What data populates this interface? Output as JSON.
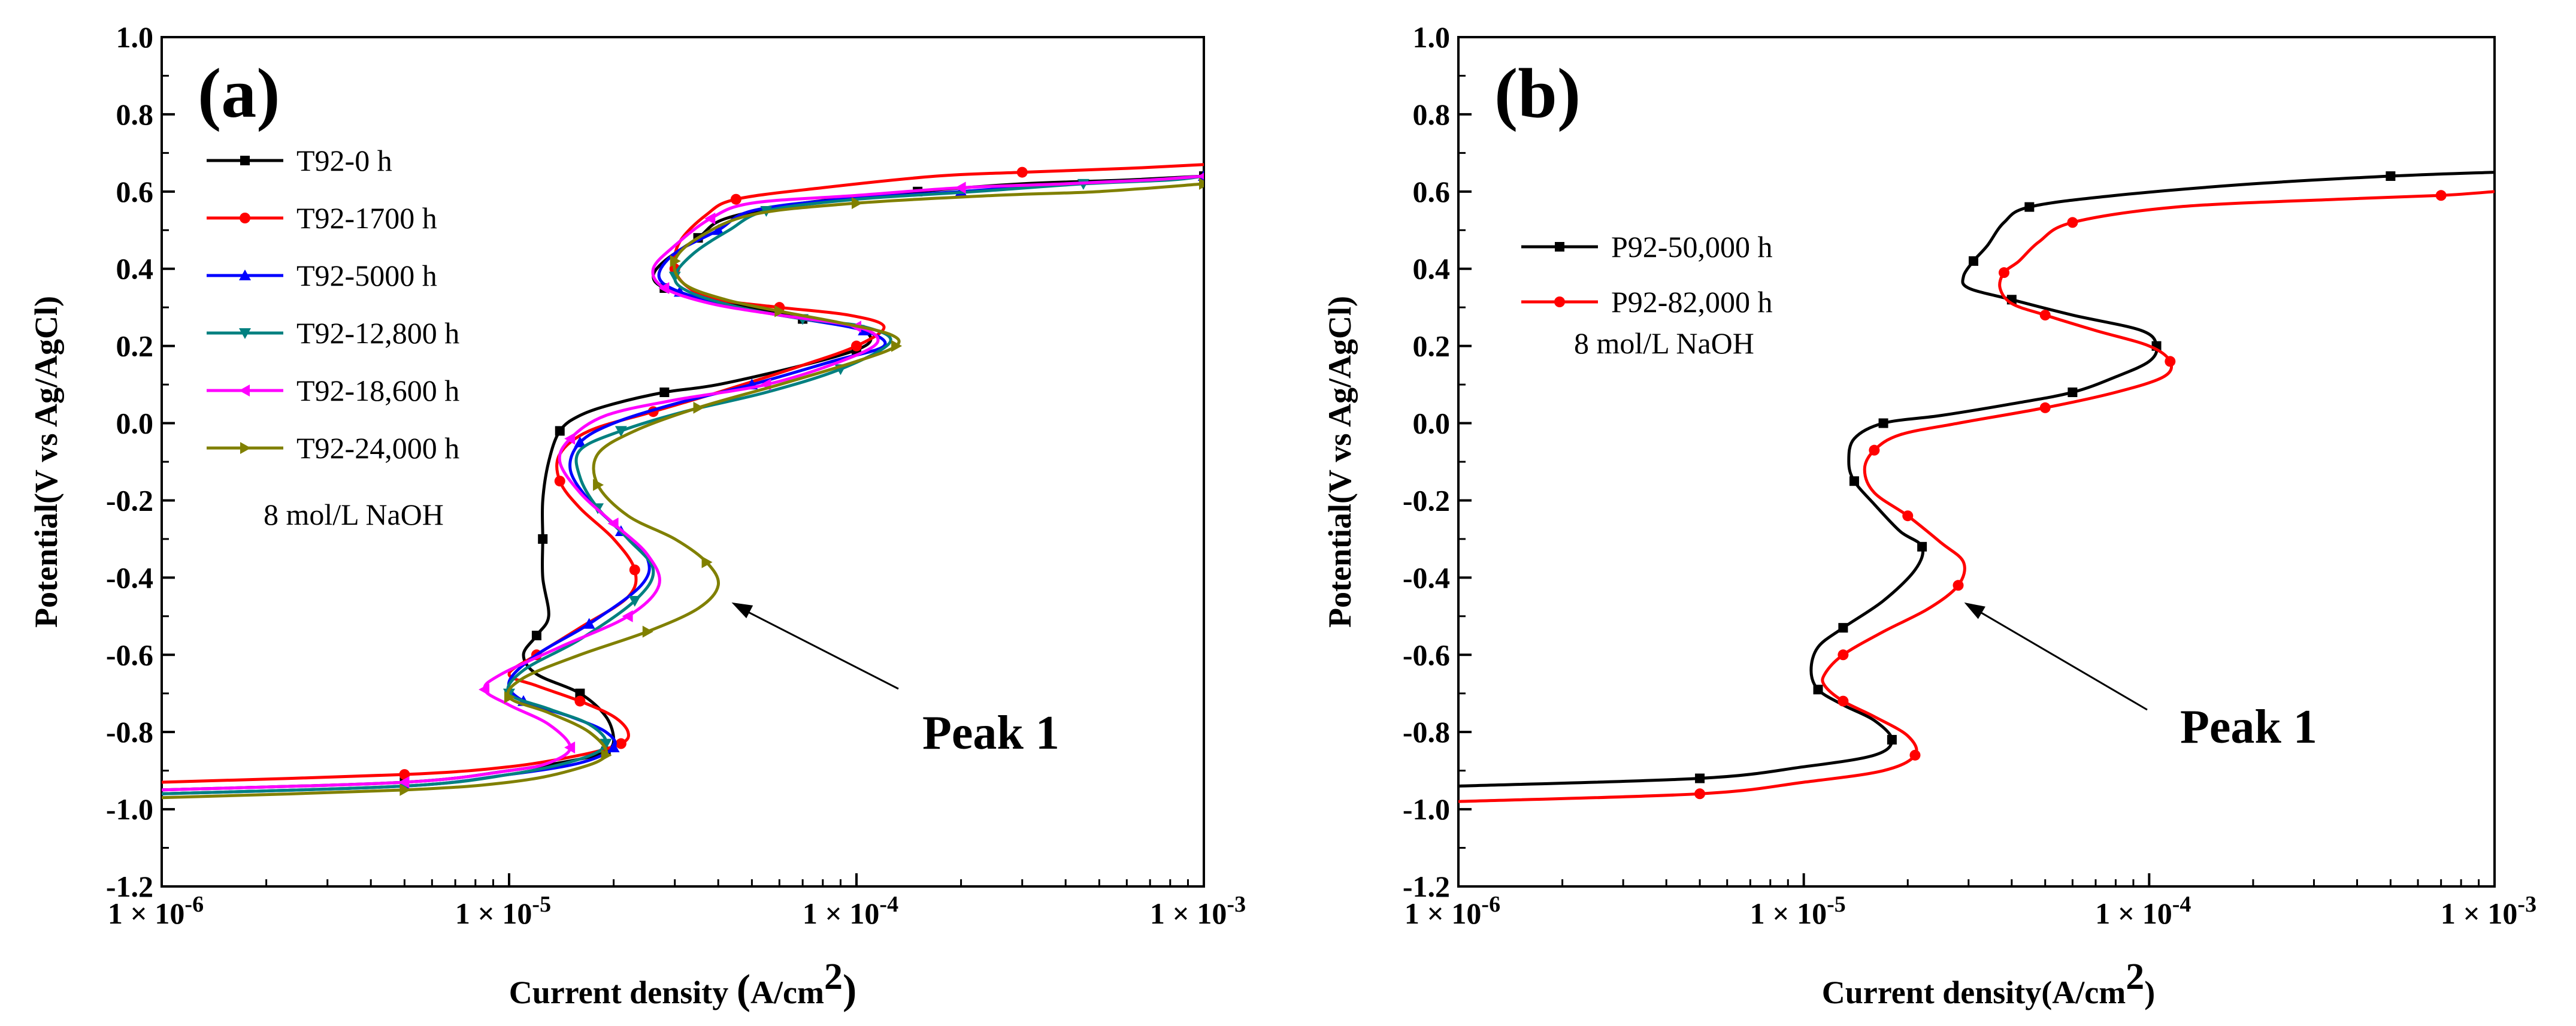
{
  "chart_data": [
    {
      "type": "line",
      "panel_label": "(a)",
      "xlabel": "Current density",
      "xlabel_unit": "A/cm",
      "xlabel_unit_exp": "2",
      "ylabel": "Potential(V vs Ag/AgCl)",
      "x_scale": "log",
      "xlim": [
        1e-06,
        0.001
      ],
      "ylim": [
        -1.2,
        1.0
      ],
      "x_ticks": [
        {
          "value": 1e-06,
          "label": "1 × 10",
          "exp": "-6"
        },
        {
          "value": 1e-05,
          "label": "1 × 10",
          "exp": "-5"
        },
        {
          "value": 0.0001,
          "label": "1 × 10",
          "exp": "-4"
        },
        {
          "value": 0.001,
          "label": "1 × 10",
          "exp": "-3"
        }
      ],
      "y_ticks": [
        -1.2,
        -1.0,
        -0.8,
        -0.6,
        -0.4,
        -0.2,
        0.0,
        0.2,
        0.4,
        0.6,
        0.8,
        1.0
      ],
      "y_tick_labels": [
        "-1.2",
        "-1.0",
        "-0.8",
        "-0.6",
        "-0.4",
        "-0.2",
        "0.0",
        "0.2",
        "0.4",
        "0.6",
        "0.8",
        "1.0"
      ],
      "legend_position": "top-left",
      "annotation_note": "8 mol/L NaOH",
      "peak_label": "Peak 1",
      "peak_target": {
        "x": 4.2e-05,
        "y": -0.48
      },
      "series": [
        {
          "name": "T92-0 h",
          "color": "#000000",
          "marker": "square",
          "x": [
            1e-06,
            5e-06,
            1e-05,
            1.6e-05,
            1.9e-05,
            2e-05,
            1.9e-05,
            1.6e-05,
            1.2e-05,
            1.1e-05,
            1.2e-05,
            1.3e-05,
            1.25e-05,
            1.25e-05,
            1.25e-05,
            1.3e-05,
            1.4e-05,
            1.6e-05,
            2e-05,
            2.8e-05,
            4e-05,
            7e-05,
            0.0001,
            0.00011,
            9.8e-05,
            7e-05,
            5e-05,
            3.6e-05,
            2.8e-05,
            2.6e-05,
            2.8e-05,
            3.5e-05,
            4.2e-05,
            7e-05,
            0.00015,
            0.0003,
            0.0006,
            0.001
          ],
          "y": [
            -0.95,
            -0.93,
            -0.9,
            -0.87,
            -0.85,
            -0.82,
            -0.76,
            -0.7,
            -0.65,
            -0.6,
            -0.55,
            -0.5,
            -0.4,
            -0.3,
            -0.2,
            -0.1,
            -0.02,
            0.02,
            0.05,
            0.08,
            0.1,
            0.15,
            0.19,
            0.22,
            0.25,
            0.27,
            0.3,
            0.32,
            0.35,
            0.38,
            0.42,
            0.48,
            0.53,
            0.57,
            0.6,
            0.62,
            0.63,
            0.64
          ]
        },
        {
          "name": "T92-1700 h",
          "color": "#ff0000",
          "marker": "circle",
          "x": [
            1e-06,
            5e-06,
            1e-05,
            1.6e-05,
            2.1e-05,
            2.2e-05,
            2e-05,
            1.6e-05,
            1.2e-05,
            1e-05,
            1.2e-05,
            1.6e-05,
            2.2e-05,
            2.3e-05,
            2e-05,
            1.6e-05,
            1.4e-05,
            1.4e-05,
            1.7e-05,
            2.6e-05,
            4e-05,
            7e-05,
            0.0001,
            0.00012,
            9.5e-05,
            6e-05,
            4e-05,
            3.3e-05,
            3e-05,
            3.1e-05,
            3.7e-05,
            4.5e-05,
            8e-05,
            0.00017,
            0.0003,
            0.0006,
            0.001
          ],
          "y": [
            -0.93,
            -0.91,
            -0.89,
            -0.86,
            -0.83,
            -0.8,
            -0.76,
            -0.72,
            -0.68,
            -0.65,
            -0.6,
            -0.53,
            -0.45,
            -0.38,
            -0.3,
            -0.22,
            -0.15,
            -0.08,
            -0.02,
            0.03,
            0.08,
            0.15,
            0.2,
            0.25,
            0.28,
            0.3,
            0.32,
            0.35,
            0.4,
            0.47,
            0.54,
            0.58,
            0.61,
            0.64,
            0.65,
            0.66,
            0.67
          ]
        },
        {
          "name": "T92-5000 h",
          "color": "#0000ff",
          "marker": "triangle-up",
          "x": [
            1e-06,
            5e-06,
            1e-05,
            1.6e-05,
            2e-05,
            1.9e-05,
            1.5e-05,
            1.1e-05,
            1e-05,
            1.2e-05,
            1.7e-05,
            2.4e-05,
            2.5e-05,
            2.1e-05,
            1.7e-05,
            1.5e-05,
            1.6e-05,
            2e-05,
            3e-05,
            5e-05,
            8.5e-05,
            0.00012,
            0.000105,
            7e-05,
            4.5e-05,
            3.1e-05,
            2.7e-05,
            3e-05,
            4e-05,
            5e-05,
            9e-05,
            0.0002,
            0.0004,
            0.0007,
            0.001
          ],
          "y": [
            -0.96,
            -0.94,
            -0.91,
            -0.88,
            -0.84,
            -0.8,
            -0.76,
            -0.72,
            -0.67,
            -0.6,
            -0.52,
            -0.42,
            -0.35,
            -0.28,
            -0.2,
            -0.12,
            -0.05,
            0.0,
            0.05,
            0.1,
            0.16,
            0.2,
            0.24,
            0.27,
            0.3,
            0.34,
            0.38,
            0.44,
            0.5,
            0.55,
            0.58,
            0.6,
            0.62,
            0.63,
            0.64
          ]
        },
        {
          "name": "T92-12,800 h",
          "color": "#008080",
          "marker": "triangle-down",
          "x": [
            1e-06,
            5e-06,
            1e-05,
            1.6e-05,
            1.9e-05,
            1.7e-05,
            1.3e-05,
            1e-05,
            1.1e-05,
            1.6e-05,
            2.3e-05,
            2.6e-05,
            2.2e-05,
            1.8e-05,
            1.6e-05,
            1.6e-05,
            2.1e-05,
            3.2e-05,
            5.5e-05,
            9e-05,
            0.000125,
            0.000105,
            7e-05,
            4.6e-05,
            3.3e-05,
            3e-05,
            3.4e-05,
            4.3e-05,
            5.5e-05,
            0.0001,
            0.00022,
            0.00045,
            0.0008,
            0.001
          ],
          "y": [
            -0.96,
            -0.94,
            -0.91,
            -0.87,
            -0.83,
            -0.78,
            -0.74,
            -0.7,
            -0.64,
            -0.56,
            -0.46,
            -0.38,
            -0.3,
            -0.22,
            -0.14,
            -0.07,
            -0.02,
            0.03,
            0.08,
            0.14,
            0.21,
            0.25,
            0.27,
            0.3,
            0.34,
            0.38,
            0.44,
            0.5,
            0.55,
            0.58,
            0.6,
            0.62,
            0.63,
            0.64
          ]
        },
        {
          "name": "T92-18,600 h",
          "color": "#ff00ff",
          "marker": "triangle-left",
          "x": [
            1e-06,
            5e-06,
            1e-05,
            1.3e-05,
            1.5e-05,
            1.3e-05,
            1e-05,
            8.5e-06,
            9.5e-06,
            1.4e-05,
            2.2e-05,
            2.7e-05,
            2.5e-05,
            2e-05,
            1.6e-05,
            1.4e-05,
            1.5e-05,
            1.9e-05,
            3e-05,
            5.5e-05,
            9e-05,
            0.000115,
            0.0001,
            6e-05,
            3.8e-05,
            2.8e-05,
            2.6e-05,
            3e-05,
            3.8e-05,
            5e-05,
            0.0001,
            0.0002,
            0.0004,
            0.0007,
            0.001
          ],
          "y": [
            -0.95,
            -0.93,
            -0.9,
            -0.88,
            -0.84,
            -0.78,
            -0.73,
            -0.69,
            -0.65,
            -0.58,
            -0.5,
            -0.42,
            -0.34,
            -0.26,
            -0.18,
            -0.1,
            -0.04,
            0.02,
            0.06,
            0.1,
            0.16,
            0.21,
            0.25,
            0.28,
            0.31,
            0.35,
            0.4,
            0.46,
            0.53,
            0.57,
            0.59,
            0.61,
            0.62,
            0.63,
            0.64
          ]
        },
        {
          "name": "T92-24,000 h",
          "color": "#808000",
          "marker": "triangle-right",
          "x": [
            1e-06,
            5e-06,
            1e-05,
            1.5e-05,
            1.9e-05,
            1.7e-05,
            1.3e-05,
            1e-05,
            1.1e-05,
            1.6e-05,
            2.5e-05,
            3.5e-05,
            4e-05,
            3.7e-05,
            3e-05,
            2.2e-05,
            1.8e-05,
            1.8e-05,
            2.3e-05,
            3.5e-05,
            6e-05,
            0.0001,
            0.00013,
            0.000125,
            9e-05,
            6e-05,
            4.2e-05,
            3.2e-05,
            3e-05,
            3.5e-05,
            5e-05,
            0.0001,
            0.00025,
            0.0005,
            0.001
          ],
          "y": [
            -0.97,
            -0.95,
            -0.93,
            -0.9,
            -0.86,
            -0.8,
            -0.75,
            -0.71,
            -0.66,
            -0.6,
            -0.54,
            -0.48,
            -0.42,
            -0.36,
            -0.3,
            -0.24,
            -0.16,
            -0.08,
            -0.02,
            0.04,
            0.1,
            0.16,
            0.2,
            0.23,
            0.26,
            0.29,
            0.32,
            0.36,
            0.42,
            0.48,
            0.54,
            0.57,
            0.59,
            0.6,
            0.62
          ]
        }
      ]
    },
    {
      "type": "line",
      "panel_label": "(b)",
      "xlabel": "Current density(A/cm",
      "xlabel_close": ")",
      "xlabel_unit_exp": "2",
      "ylabel": "Potential(V vs Ag/AgCl)",
      "x_scale": "log",
      "xlim": [
        1e-06,
        0.001
      ],
      "ylim": [
        -1.2,
        1.0
      ],
      "x_ticks": [
        {
          "value": 1e-06,
          "label": "1 × 10",
          "exp": "-6"
        },
        {
          "value": 1e-05,
          "label": "1 × 10",
          "exp": "-5"
        },
        {
          "value": 0.0001,
          "label": "1 × 10",
          "exp": "-4"
        },
        {
          "value": 0.001,
          "label": "1 × 10",
          "exp": "-3"
        }
      ],
      "y_ticks": [
        -1.2,
        -1.0,
        -0.8,
        -0.6,
        -0.4,
        -0.2,
        0.0,
        0.2,
        0.4,
        0.6,
        0.8,
        1.0
      ],
      "y_tick_labels": [
        "-1.2",
        "-1.0",
        "-0.8",
        "-0.6",
        "-0.4",
        "-0.2",
        "0.0",
        "0.2",
        "0.4",
        "0.6",
        "0.8",
        "1.0"
      ],
      "legend_position": "top-left",
      "annotation_note": "8 mol/L NaOH",
      "peak_label": "Peak 1",
      "peak_target": {
        "x": 2.8e-05,
        "y": -0.48
      },
      "series": [
        {
          "name": "P92-50,000 h",
          "color": "#000000",
          "marker": "square",
          "x": [
            1e-06,
            5e-06,
            1e-05,
            1.6e-05,
            1.8e-05,
            1.6e-05,
            1.3e-05,
            1.1e-05,
            1.05e-05,
            1.1e-05,
            1.3e-05,
            1.7e-05,
            2.1e-05,
            2.2e-05,
            1.9e-05,
            1.6e-05,
            1.4e-05,
            1.35e-05,
            1.4e-05,
            1.7e-05,
            2.5e-05,
            4e-05,
            6e-05,
            8e-05,
            0.0001,
            0.000105,
            9.5e-05,
            6e-05,
            4e-05,
            3e-05,
            2.9e-05,
            3.1e-05,
            3.4e-05,
            3.8e-05,
            4.5e-05,
            8e-05,
            0.0002,
            0.0005,
            0.001
          ],
          "y": [
            -0.94,
            -0.92,
            -0.89,
            -0.86,
            -0.82,
            -0.77,
            -0.73,
            -0.69,
            -0.64,
            -0.58,
            -0.53,
            -0.46,
            -0.38,
            -0.32,
            -0.28,
            -0.21,
            -0.15,
            -0.1,
            -0.04,
            0.0,
            0.02,
            0.05,
            0.08,
            0.12,
            0.16,
            0.2,
            0.24,
            0.28,
            0.32,
            0.35,
            0.38,
            0.42,
            0.46,
            0.52,
            0.56,
            0.59,
            0.62,
            0.64,
            0.65
          ]
        },
        {
          "name": "P92-82,000 h",
          "color": "#ff0000",
          "marker": "circle",
          "x": [
            1e-06,
            5e-06,
            1e-05,
            1.7e-05,
            2.1e-05,
            2e-05,
            1.6e-05,
            1.3e-05,
            1.15e-05,
            1.15e-05,
            1.3e-05,
            1.7e-05,
            2.3e-05,
            2.8e-05,
            2.9e-05,
            2.5e-05,
            2e-05,
            1.6e-05,
            1.5e-05,
            1.6e-05,
            1.9e-05,
            2.8e-05,
            5e-05,
            8e-05,
            0.00011,
            0.000115,
            0.0001,
            7e-05,
            5e-05,
            4e-05,
            3.7e-05,
            3.8e-05,
            4.2e-05,
            4.8e-05,
            6e-05,
            0.00012,
            0.00035,
            0.0007,
            0.001
          ],
          "y": [
            -0.98,
            -0.96,
            -0.93,
            -0.9,
            -0.86,
            -0.81,
            -0.76,
            -0.72,
            -0.68,
            -0.65,
            -0.6,
            -0.54,
            -0.48,
            -0.42,
            -0.36,
            -0.31,
            -0.24,
            -0.18,
            -0.12,
            -0.07,
            -0.03,
            0.0,
            0.04,
            0.08,
            0.12,
            0.16,
            0.2,
            0.24,
            0.28,
            0.31,
            0.35,
            0.39,
            0.42,
            0.47,
            0.52,
            0.56,
            0.58,
            0.59,
            0.6
          ]
        }
      ]
    }
  ]
}
